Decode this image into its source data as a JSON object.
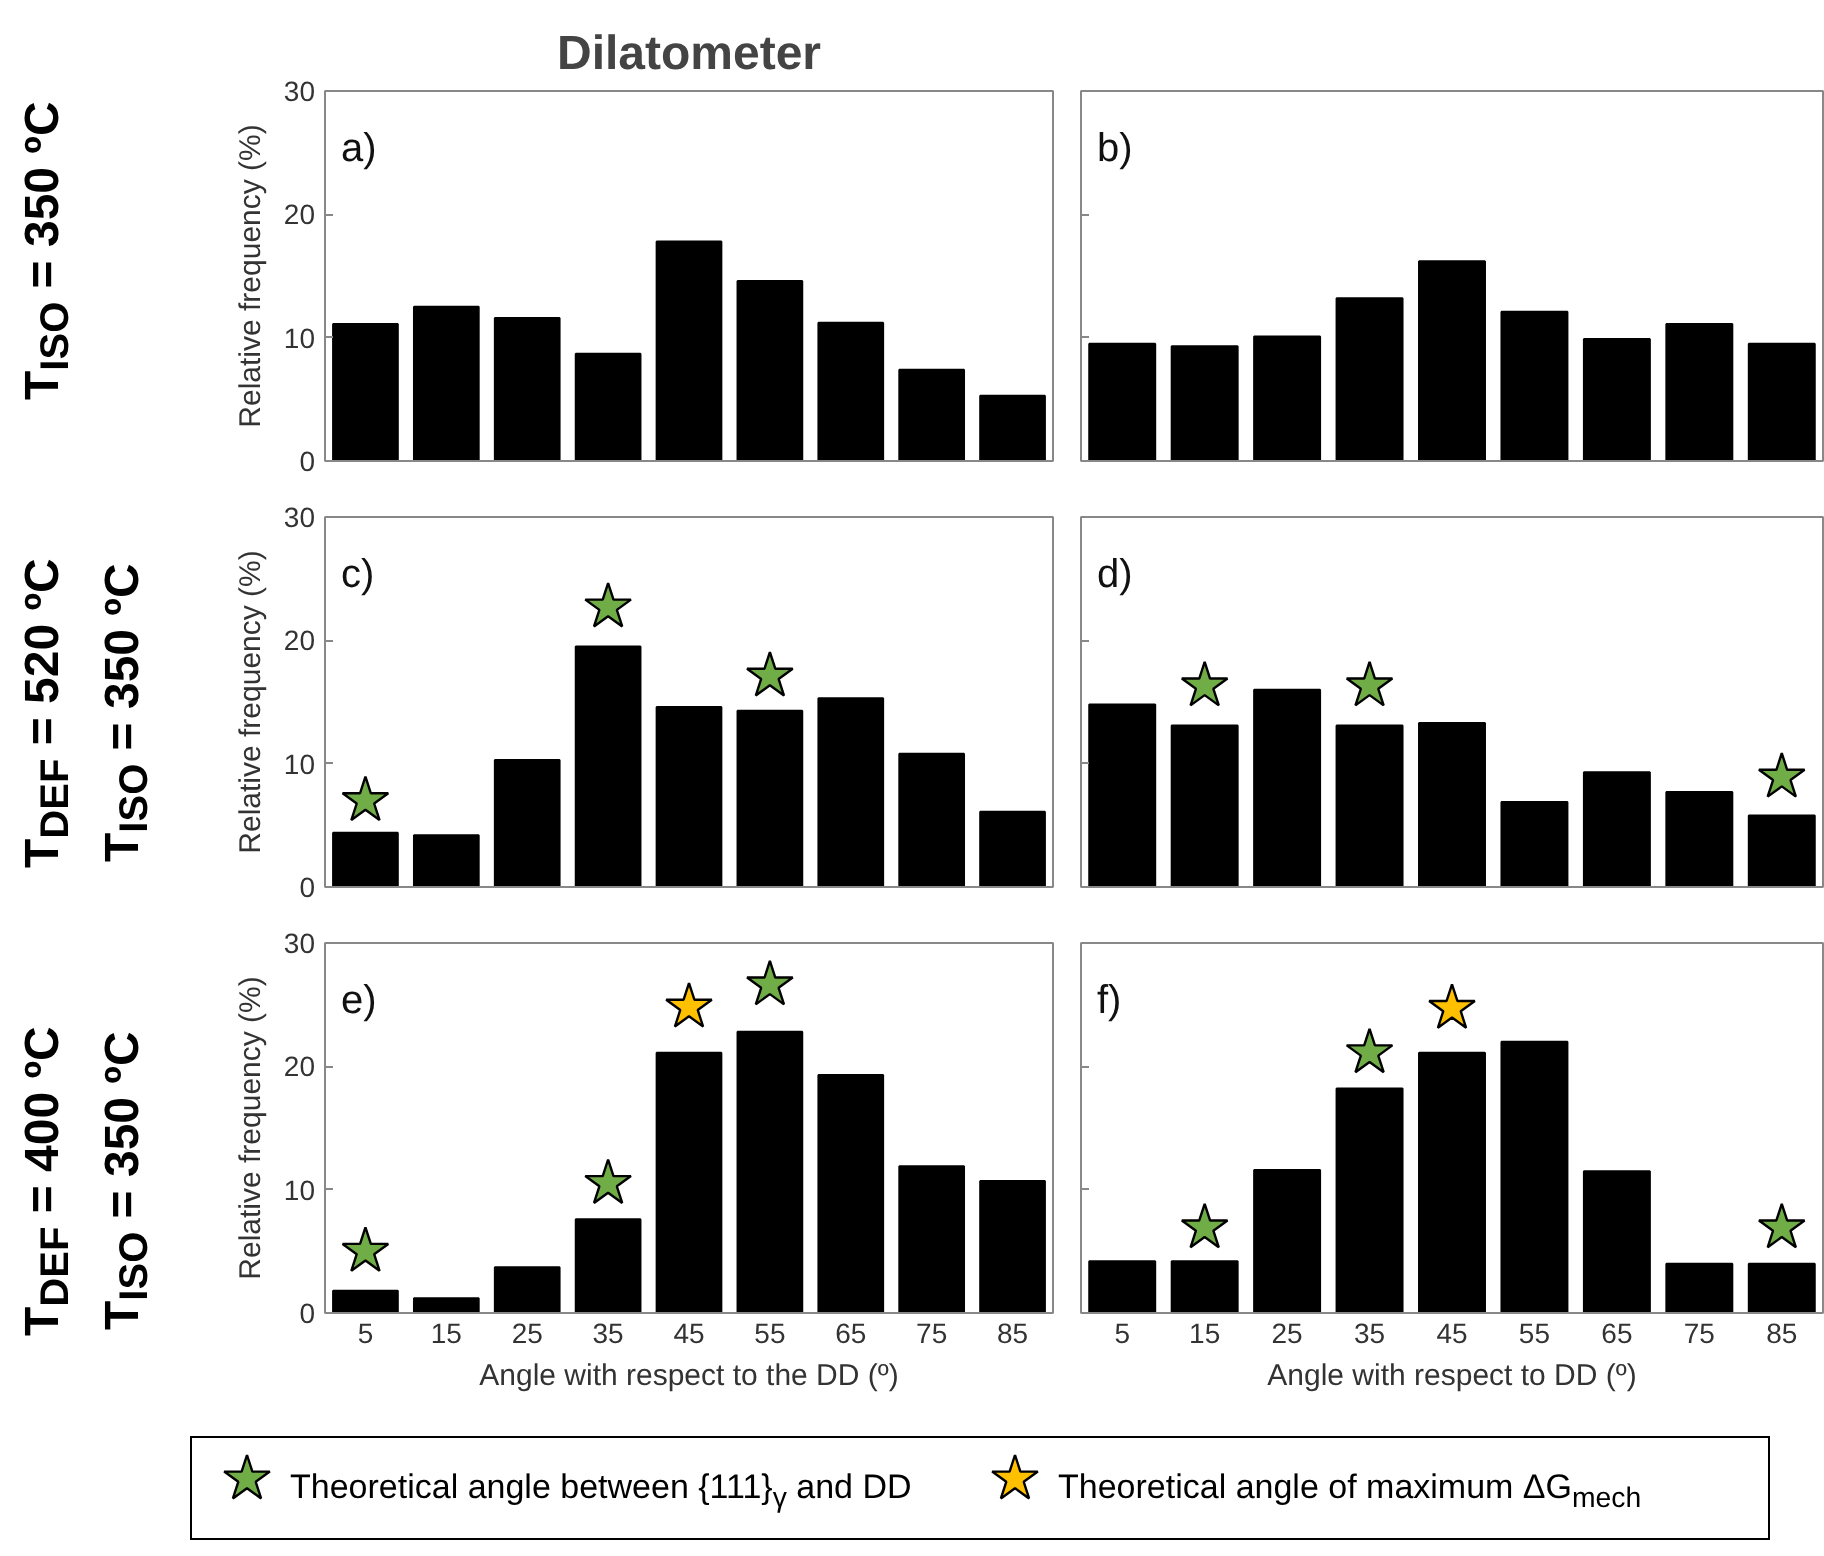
{
  "chart_data": [
    {
      "type": "bar",
      "title": "Dilatometer",
      "ylabel": "Relative frequency (%)",
      "categories": [
        "5",
        "15",
        "25",
        "35",
        "45",
        "55",
        "65",
        "75",
        "85"
      ],
      "ylim": [
        0,
        30
      ],
      "yticks": [
        0,
        10,
        20,
        30
      ],
      "tick_labels": "y",
      "annotations": [
        "a)",
        "T$_{ISO}$ = 350 ºC"
      ],
      "series": [
        {
          "color": "#000000",
          "values": [
            11.1,
            12.5,
            11.6,
            8.7,
            17.8,
            14.6,
            11.2,
            7.4,
            5.3
          ]
        }
      ]
    },
    {
      "type": "bar",
      "categories": [
        "5",
        "15",
        "25",
        "35",
        "45",
        "55",
        "65",
        "75",
        "85"
      ],
      "ylim": [
        0,
        30
      ],
      "yticks": [
        0,
        10,
        20,
        30
      ],
      "tick_labels": false,
      "annotations": [
        "b)"
      ],
      "series": [
        {
          "color": "#000000",
          "values": [
            9.5,
            9.3,
            10.1,
            13.2,
            16.2,
            12.1,
            9.9,
            11.1,
            9.5
          ]
        }
      ]
    },
    {
      "type": "bar",
      "ylabel": "Relative frequency (%)",
      "categories": [
        "5",
        "15",
        "25",
        "35",
        "45",
        "55",
        "65",
        "75",
        "85"
      ],
      "ylim": [
        0,
        30
      ],
      "yticks": [
        0,
        10,
        20,
        30
      ],
      "tick_labels": "y",
      "annotations": [
        "c)",
        "T$_{DEF}$ = 520 ºC",
        "T$_{ISO}$ = 350 ºC"
      ],
      "series": [
        {
          "color": "#000000",
          "values": [
            4.4,
            4.2,
            10.3,
            19.5,
            14.6,
            14.3,
            15.3,
            10.8,
            6.1
          ]
        },
        {
          "type": "scatter",
          "marker": "star",
          "color": "#70ad47",
          "x": [
            "5",
            "35",
            "55"
          ],
          "values": [
            7.0,
            22.7,
            17.1
          ]
        }
      ]
    },
    {
      "type": "bar",
      "categories": [
        "5",
        "15",
        "25",
        "35",
        "45",
        "55",
        "65",
        "75",
        "85"
      ],
      "ylim": [
        0,
        30
      ],
      "yticks": [
        0,
        10,
        20,
        30
      ],
      "tick_labels": false,
      "annotations": [
        "d)"
      ],
      "series": [
        {
          "color": "#000000",
          "values": [
            14.8,
            13.1,
            16.0,
            13.1,
            13.3,
            6.9,
            9.3,
            7.7,
            5.8
          ]
        },
        {
          "type": "scatter",
          "marker": "star",
          "color": "#70ad47",
          "x": [
            "15",
            "35",
            "85"
          ],
          "values": [
            16.3,
            16.3,
            8.9
          ]
        }
      ]
    },
    {
      "type": "bar",
      "ylabel": "Relative frequency (%)",
      "xlabel": "Angle with respect to the DD (º)",
      "categories": [
        "5",
        "15",
        "25",
        "35",
        "45",
        "55",
        "65",
        "75",
        "85"
      ],
      "ylim": [
        0,
        30
      ],
      "yticks": [
        0,
        10,
        20,
        30
      ],
      "legend": "bottom",
      "annotations": [
        "e)",
        "T$_{DEF}$ = 400 ºC",
        "T$_{ISO}$ = 350 ºC"
      ],
      "series": [
        {
          "color": "#000000",
          "values": [
            1.8,
            1.2,
            3.7,
            7.6,
            21.1,
            22.8,
            19.3,
            11.9,
            10.7
          ]
        },
        {
          "type": "scatter",
          "marker": "star",
          "name": "Theoretical angle between {111}$_{γ}$ and DD",
          "color": "#70ad47",
          "x": [
            "5",
            "35",
            "55"
          ],
          "values": [
            5.0,
            10.5,
            26.6
          ]
        },
        {
          "type": "scatter",
          "marker": "star",
          "name": "Theoretical angle of maximum ΔG$_{mech}$",
          "color": "#ffc000",
          "x": [
            "45"
          ],
          "values": [
            24.8
          ]
        }
      ]
    },
    {
      "type": "bar",
      "xlabel": "Angle with respect to DD (º)",
      "categories": [
        "5",
        "15",
        "25",
        "35",
        "45",
        "55",
        "65",
        "75",
        "85"
      ],
      "ylim": [
        0,
        30
      ],
      "yticks": [
        0,
        10,
        20,
        30
      ],
      "tick_labels": "x",
      "annotations": [
        "f)"
      ],
      "series": [
        {
          "color": "#000000",
          "values": [
            4.2,
            4.2,
            11.6,
            18.2,
            21.1,
            22.0,
            11.5,
            4.0,
            4.0
          ]
        },
        {
          "type": "scatter",
          "marker": "star",
          "color": "#70ad47",
          "x": [
            "15",
            "35",
            "85"
          ],
          "values": [
            6.9,
            21.1,
            6.9
          ]
        },
        {
          "type": "scatter",
          "marker": "star",
          "color": "#ffc000",
          "x": [
            "45"
          ],
          "values": [
            24.7
          ]
        }
      ]
    }
  ]
}
